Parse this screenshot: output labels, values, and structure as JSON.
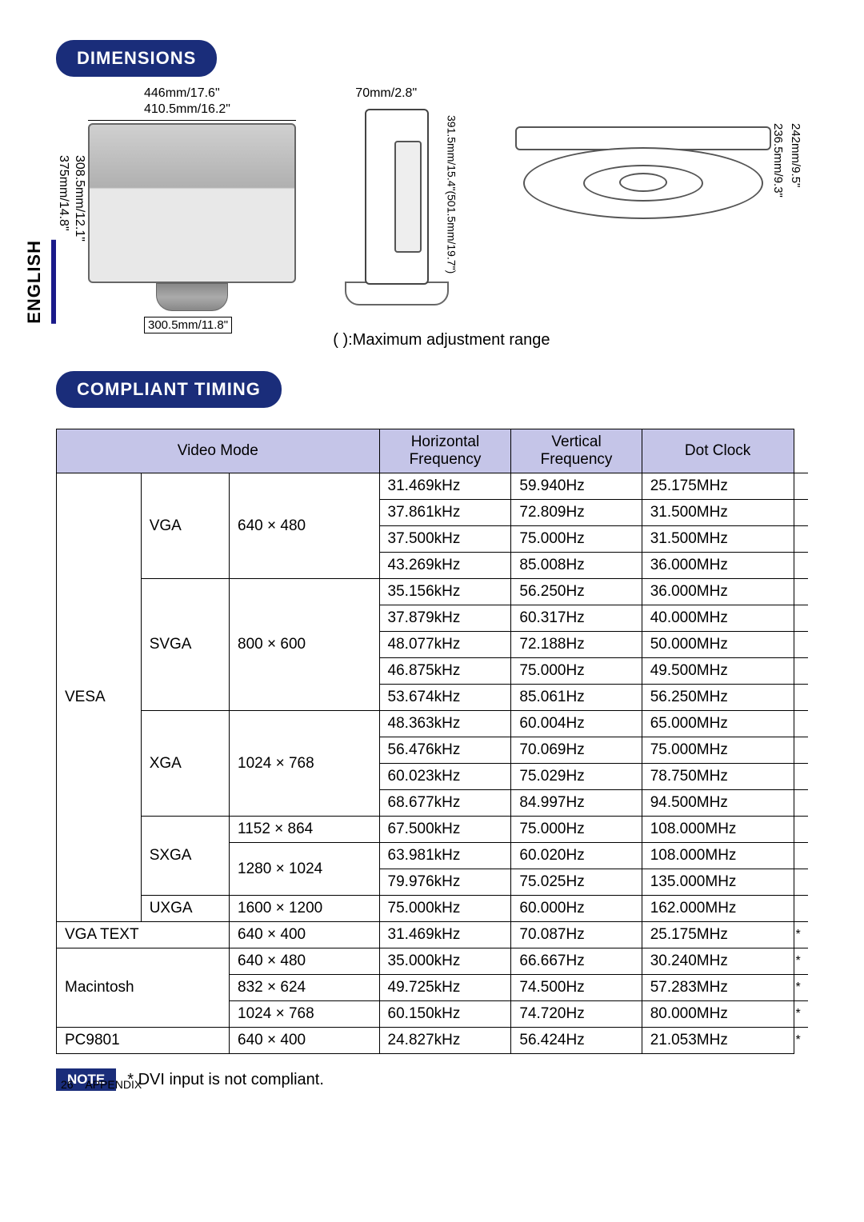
{
  "language_tab": "ENGLISH",
  "headings": {
    "dimensions": "DIMENSIONS",
    "compliant_timing": "COMPLIANT TIMING"
  },
  "dimensions": {
    "front": {
      "top1": "446mm/17.6\"",
      "top2": "410.5mm/16.2\"",
      "left1": "308.5mm/12.1\"",
      "left2": "375mm/14.8\"",
      "base": "300.5mm/11.8\""
    },
    "side": {
      "top": "70mm/2.8\"",
      "right": "391.5mm/15.4\"(501.5mm/19.7\")"
    },
    "top": {
      "r1": "236.5mm/9.3\"",
      "r2": "242mm/9.5\""
    },
    "caption": "( ):Maximum adjustment range"
  },
  "timing_table": {
    "headers": {
      "video_mode": "Video Mode",
      "horiz": "Horizontal Frequency",
      "vert": "Vertical Frequency",
      "dot": "Dot Clock"
    },
    "groups": [
      {
        "group": "VESA",
        "subgroups": [
          {
            "mode": "VGA",
            "res": "640 × 480",
            "rows": [
              {
                "h": "31.469kHz",
                "v": "59.940Hz",
                "d": "25.175MHz",
                "a": ""
              },
              {
                "h": "37.861kHz",
                "v": "72.809Hz",
                "d": "31.500MHz",
                "a": ""
              },
              {
                "h": "37.500kHz",
                "v": "75.000Hz",
                "d": "31.500MHz",
                "a": ""
              },
              {
                "h": "43.269kHz",
                "v": "85.008Hz",
                "d": "36.000MHz",
                "a": ""
              }
            ]
          },
          {
            "mode": "SVGA",
            "res": "800 × 600",
            "rows": [
              {
                "h": "35.156kHz",
                "v": "56.250Hz",
                "d": "36.000MHz",
                "a": ""
              },
              {
                "h": "37.879kHz",
                "v": "60.317Hz",
                "d": "40.000MHz",
                "a": ""
              },
              {
                "h": "48.077kHz",
                "v": "72.188Hz",
                "d": "50.000MHz",
                "a": ""
              },
              {
                "h": "46.875kHz",
                "v": "75.000Hz",
                "d": "49.500MHz",
                "a": ""
              },
              {
                "h": "53.674kHz",
                "v": "85.061Hz",
                "d": "56.250MHz",
                "a": ""
              }
            ]
          },
          {
            "mode": "XGA",
            "res": "1024 × 768",
            "rows": [
              {
                "h": "48.363kHz",
                "v": "60.004Hz",
                "d": "65.000MHz",
                "a": ""
              },
              {
                "h": "56.476kHz",
                "v": "70.069Hz",
                "d": "75.000MHz",
                "a": ""
              },
              {
                "h": "60.023kHz",
                "v": "75.029Hz",
                "d": "78.750MHz",
                "a": ""
              },
              {
                "h": "68.677kHz",
                "v": "84.997Hz",
                "d": "94.500MHz",
                "a": ""
              }
            ]
          },
          {
            "mode": "SXGA",
            "res_list": [
              {
                "res": "1152 × 864",
                "rows": [
                  {
                    "h": "67.500kHz",
                    "v": "75.000Hz",
                    "d": "108.000MHz",
                    "a": ""
                  }
                ]
              },
              {
                "res": "1280 × 1024",
                "rows": [
                  {
                    "h": "63.981kHz",
                    "v": "60.020Hz",
                    "d": "108.000MHz",
                    "a": ""
                  },
                  {
                    "h": "79.976kHz",
                    "v": "75.025Hz",
                    "d": "135.000MHz",
                    "a": ""
                  }
                ]
              }
            ]
          },
          {
            "mode": "UXGA",
            "res": "1600 × 1200",
            "rows": [
              {
                "h": "75.000kHz",
                "v": "60.000Hz",
                "d": "162.000MHz",
                "a": ""
              }
            ]
          }
        ]
      },
      {
        "group": "VGA TEXT",
        "res": "640 × 400",
        "rows": [
          {
            "h": "31.469kHz",
            "v": "70.087Hz",
            "d": "25.175MHz",
            "a": "*"
          }
        ]
      },
      {
        "group": "Macintosh",
        "res_rows": [
          {
            "res": "640 × 480",
            "h": "35.000kHz",
            "v": "66.667Hz",
            "d": "30.240MHz",
            "a": "*"
          },
          {
            "res": "832 × 624",
            "h": "49.725kHz",
            "v": "74.500Hz",
            "d": "57.283MHz",
            "a": "*"
          },
          {
            "res": "1024 × 768",
            "h": "60.150kHz",
            "v": "74.720Hz",
            "d": "80.000MHz",
            "a": "*"
          }
        ]
      },
      {
        "group": "PC9801",
        "res": "640 × 400",
        "rows": [
          {
            "h": "24.827kHz",
            "v": "56.424Hz",
            "d": "21.053MHz",
            "a": "*"
          }
        ]
      }
    ]
  },
  "note": {
    "label": "NOTE",
    "text": "* DVI input is not compliant."
  },
  "footer": {
    "page": "26",
    "section": "APPENDIX"
  },
  "colors": {
    "heading_bg": "#1a2d7a",
    "heading_fg": "#ffffff",
    "table_header_bg": "#c5c5e8",
    "border": "#000000",
    "bg": "#ffffff"
  }
}
